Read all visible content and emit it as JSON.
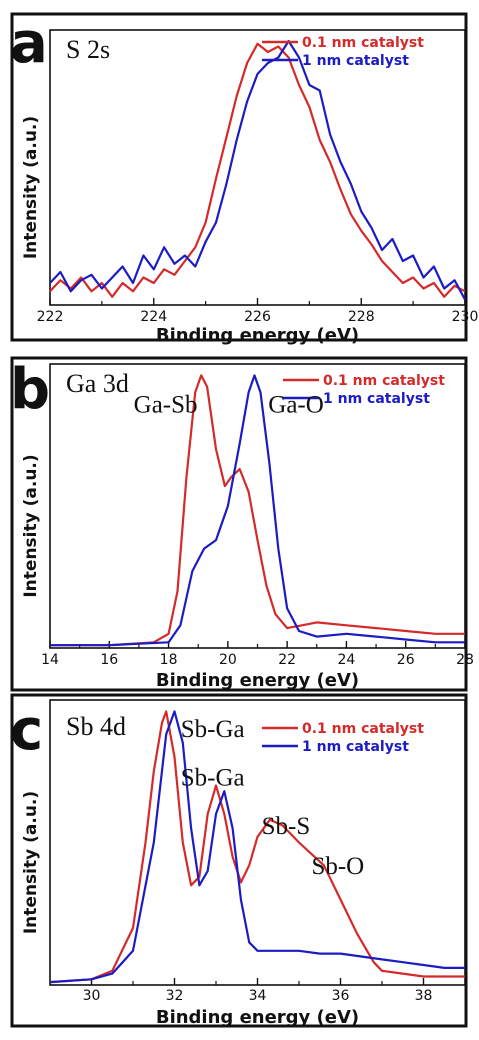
{
  "chart_data": [
    {
      "type": "line",
      "panel_letter": "a",
      "title": "S 2s",
      "xlabel": "Binding energy (eV)",
      "ylabel": "Intensity (a.u.)",
      "xlim": [
        222,
        230
      ],
      "ylim": [
        0,
        1
      ],
      "xticks": [
        222,
        224,
        226,
        228,
        230
      ],
      "series": [
        {
          "name": "0.1 nm catalyst",
          "color": "#d42a2a",
          "x": [
            222,
            222.2,
            222.4,
            222.6,
            222.8,
            223,
            223.2,
            223.4,
            223.6,
            223.8,
            224,
            224.2,
            224.4,
            224.6,
            224.8,
            225,
            225.2,
            225.4,
            225.6,
            225.8,
            226,
            226.2,
            226.4,
            226.6,
            226.8,
            227,
            227.2,
            227.4,
            227.6,
            227.8,
            228,
            228.2,
            228.4,
            228.6,
            228.8,
            229,
            229.2,
            229.4,
            229.6,
            229.8,
            230
          ],
          "y": [
            0.05,
            0.09,
            0.06,
            0.1,
            0.05,
            0.08,
            0.03,
            0.08,
            0.05,
            0.1,
            0.08,
            0.13,
            0.11,
            0.16,
            0.21,
            0.3,
            0.46,
            0.61,
            0.76,
            0.88,
            0.95,
            0.92,
            0.94,
            0.9,
            0.8,
            0.72,
            0.6,
            0.52,
            0.42,
            0.33,
            0.27,
            0.22,
            0.16,
            0.12,
            0.08,
            0.1,
            0.06,
            0.08,
            0.03,
            0.07,
            0.05
          ]
        },
        {
          "name": "1 nm catalyst",
          "color": "#1c1cc4",
          "x": [
            222,
            222.2,
            222.4,
            222.6,
            222.8,
            223,
            223.2,
            223.4,
            223.6,
            223.8,
            224,
            224.2,
            224.4,
            224.6,
            224.8,
            225,
            225.2,
            225.4,
            225.6,
            225.8,
            226,
            226.2,
            226.4,
            226.6,
            226.8,
            227,
            227.2,
            227.4,
            227.6,
            227.8,
            228,
            228.2,
            228.4,
            228.6,
            228.8,
            229,
            229.2,
            229.4,
            229.6,
            229.8,
            230
          ],
          "y": [
            0.08,
            0.12,
            0.05,
            0.09,
            0.11,
            0.06,
            0.1,
            0.14,
            0.08,
            0.18,
            0.13,
            0.21,
            0.15,
            0.18,
            0.14,
            0.23,
            0.3,
            0.44,
            0.6,
            0.74,
            0.84,
            0.88,
            0.9,
            0.96,
            0.9,
            0.8,
            0.78,
            0.62,
            0.52,
            0.44,
            0.34,
            0.28,
            0.2,
            0.24,
            0.16,
            0.18,
            0.1,
            0.14,
            0.06,
            0.09,
            0.02
          ]
        }
      ]
    },
    {
      "type": "line",
      "panel_letter": "b",
      "title": "Ga 3d",
      "xlabel": "Binding energy (eV)",
      "ylabel": "Intensity (a.u.)",
      "xlim": [
        14,
        28
      ],
      "ylim": [
        0,
        1
      ],
      "xticks": [
        14,
        16,
        18,
        20,
        22,
        24,
        26,
        28
      ],
      "annotations": [
        {
          "text": "Ga-Sb",
          "x": 17.9,
          "y": 0.83
        },
        {
          "text": "Ga-O",
          "x": 22.3,
          "y": 0.83
        }
      ],
      "series": [
        {
          "name": "0.1 nm catalyst",
          "color": "#d42a2a",
          "x": [
            14,
            16,
            17.5,
            18,
            18.3,
            18.6,
            18.9,
            19.1,
            19.3,
            19.6,
            19.9,
            20.1,
            20.4,
            20.7,
            21,
            21.3,
            21.6,
            22,
            22.5,
            23,
            24,
            25,
            26,
            27,
            28
          ],
          "y": [
            0.01,
            0.01,
            0.02,
            0.05,
            0.2,
            0.6,
            0.9,
            0.96,
            0.92,
            0.7,
            0.57,
            0.6,
            0.63,
            0.55,
            0.38,
            0.22,
            0.12,
            0.07,
            0.08,
            0.09,
            0.08,
            0.07,
            0.06,
            0.05,
            0.05
          ]
        },
        {
          "name": "1 nm catalyst",
          "color": "#1c1cc4",
          "x": [
            14,
            16,
            18,
            18.4,
            18.8,
            19.2,
            19.6,
            20,
            20.4,
            20.7,
            20.9,
            21.1,
            21.4,
            21.7,
            22,
            22.4,
            23,
            24,
            25,
            26,
            27,
            28
          ],
          "y": [
            0.01,
            0.01,
            0.02,
            0.08,
            0.27,
            0.35,
            0.38,
            0.5,
            0.72,
            0.9,
            0.96,
            0.9,
            0.65,
            0.35,
            0.14,
            0.06,
            0.04,
            0.05,
            0.04,
            0.03,
            0.02,
            0.02
          ]
        }
      ]
    },
    {
      "type": "line",
      "panel_letter": "c",
      "title": "Sb 4d",
      "xlabel": "Binding energy (eV)",
      "ylabel": "Intensity (a.u.)",
      "xlim": [
        29,
        39
      ],
      "ylim": [
        0,
        1
      ],
      "xticks": [
        30,
        32,
        34,
        36,
        38
      ],
      "annotations": [
        {
          "text": "Sb-Ga",
          "x": 32.15,
          "y": 0.87
        },
        {
          "text": "Sb-Ga",
          "x": 32.15,
          "y": 0.7
        },
        {
          "text": "Sb-S",
          "x": 34.1,
          "y": 0.53
        },
        {
          "text": "Sb-O",
          "x": 35.3,
          "y": 0.39
        }
      ],
      "series": [
        {
          "name": "0.1 nm catalyst",
          "color": "#d42a2a",
          "x": [
            29,
            30,
            30.5,
            31,
            31.3,
            31.5,
            31.7,
            31.8,
            32,
            32.2,
            32.4,
            32.6,
            32.8,
            33,
            33.2,
            33.4,
            33.6,
            33.8,
            34,
            34.3,
            34.6,
            35,
            35.3,
            35.6,
            36,
            36.4,
            36.8,
            37,
            37.5,
            38,
            38.5,
            39
          ],
          "y": [
            0.01,
            0.02,
            0.05,
            0.2,
            0.5,
            0.75,
            0.92,
            0.96,
            0.8,
            0.5,
            0.35,
            0.38,
            0.6,
            0.7,
            0.6,
            0.45,
            0.36,
            0.42,
            0.52,
            0.58,
            0.56,
            0.5,
            0.46,
            0.42,
            0.3,
            0.18,
            0.08,
            0.05,
            0.04,
            0.03,
            0.03,
            0.03
          ]
        },
        {
          "name": "1 nm catalyst",
          "color": "#1c1cc4",
          "x": [
            29,
            30,
            30.5,
            31,
            31.5,
            31.8,
            32,
            32.2,
            32.4,
            32.6,
            32.8,
            33,
            33.2,
            33.4,
            33.6,
            33.8,
            34,
            34.5,
            35,
            35.5,
            36,
            36.5,
            37,
            37.5,
            38,
            38.5,
            39
          ],
          "y": [
            0.01,
            0.02,
            0.04,
            0.12,
            0.5,
            0.88,
            0.96,
            0.85,
            0.55,
            0.35,
            0.4,
            0.6,
            0.68,
            0.55,
            0.3,
            0.15,
            0.12,
            0.12,
            0.12,
            0.11,
            0.11,
            0.1,
            0.09,
            0.08,
            0.07,
            0.06,
            0.06
          ]
        }
      ]
    }
  ]
}
